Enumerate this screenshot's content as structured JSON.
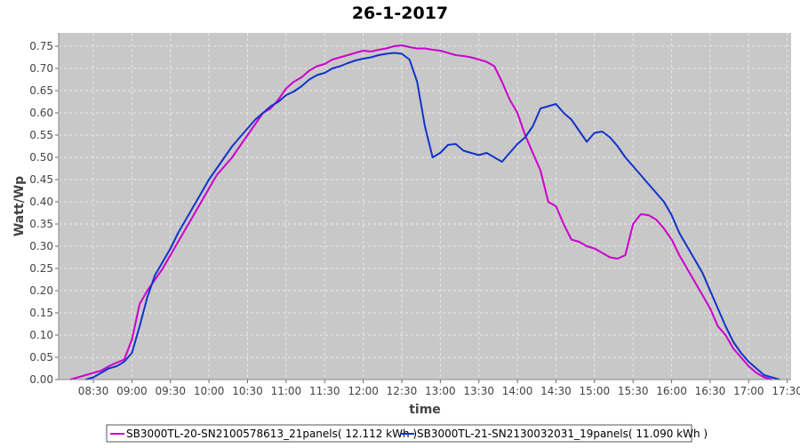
{
  "chart_data": {
    "type": "line",
    "title": "26-1-2017",
    "xlabel": "time",
    "ylabel": "Watt/Wp",
    "x_ticks": [
      "08:30",
      "09:00",
      "09:30",
      "10:00",
      "10:30",
      "11:00",
      "11:30",
      "12:00",
      "12:30",
      "13:00",
      "13:30",
      "14:00",
      "14:30",
      "15:00",
      "15:30",
      "16:00",
      "16:30",
      "17:00",
      "17:30"
    ],
    "y_ticks": [
      "0.00",
      "0.05",
      "0.10",
      "0.15",
      "0.20",
      "0.25",
      "0.30",
      "0.35",
      "0.40",
      "0.45",
      "0.50",
      "0.55",
      "0.60",
      "0.65",
      "0.70",
      "0.75"
    ],
    "xlim": [
      "08:03",
      "17:33"
    ],
    "ylim": [
      0,
      0.78
    ],
    "grid": true,
    "legend_position": "bottom",
    "colors": {
      "plot_background": "#c8c8c8",
      "grid": "#e8e8e8"
    },
    "series": [
      {
        "name": "SB3000TL-20-SN2100578613_21panels( 12.112 kWh )",
        "color": "#cc00cc",
        "points": [
          [
            "08:12",
            0.0
          ],
          [
            "08:18",
            0.005
          ],
          [
            "08:24",
            0.01
          ],
          [
            "08:30",
            0.015
          ],
          [
            "08:36",
            0.02
          ],
          [
            "08:42",
            0.03
          ],
          [
            "08:48",
            0.038
          ],
          [
            "08:54",
            0.045
          ],
          [
            "09:00",
            0.09
          ],
          [
            "09:06",
            0.17
          ],
          [
            "09:12",
            0.2
          ],
          [
            "09:18",
            0.225
          ],
          [
            "09:24",
            0.25
          ],
          [
            "09:30",
            0.28
          ],
          [
            "09:36",
            0.31
          ],
          [
            "09:42",
            0.34
          ],
          [
            "09:48",
            0.37
          ],
          [
            "09:54",
            0.4
          ],
          [
            "10:00",
            0.43
          ],
          [
            "10:06",
            0.46
          ],
          [
            "10:12",
            0.48
          ],
          [
            "10:18",
            0.5
          ],
          [
            "10:24",
            0.525
          ],
          [
            "10:30",
            0.55
          ],
          [
            "10:36",
            0.575
          ],
          [
            "10:42",
            0.6
          ],
          [
            "10:48",
            0.61
          ],
          [
            "10:54",
            0.63
          ],
          [
            "11:00",
            0.655
          ],
          [
            "11:06",
            0.67
          ],
          [
            "11:12",
            0.68
          ],
          [
            "11:18",
            0.695
          ],
          [
            "11:24",
            0.705
          ],
          [
            "11:30",
            0.71
          ],
          [
            "11:36",
            0.72
          ],
          [
            "11:42",
            0.725
          ],
          [
            "11:48",
            0.73
          ],
          [
            "11:54",
            0.735
          ],
          [
            "12:00",
            0.74
          ],
          [
            "12:06",
            0.738
          ],
          [
            "12:12",
            0.742
          ],
          [
            "12:18",
            0.745
          ],
          [
            "12:24",
            0.75
          ],
          [
            "12:30",
            0.752
          ],
          [
            "12:36",
            0.748
          ],
          [
            "12:42",
            0.745
          ],
          [
            "12:48",
            0.745
          ],
          [
            "12:54",
            0.742
          ],
          [
            "13:00",
            0.74
          ],
          [
            "13:06",
            0.735
          ],
          [
            "13:12",
            0.73
          ],
          [
            "13:18",
            0.728
          ],
          [
            "13:24",
            0.725
          ],
          [
            "13:30",
            0.72
          ],
          [
            "13:36",
            0.715
          ],
          [
            "13:42",
            0.705
          ],
          [
            "13:48",
            0.67
          ],
          [
            "13:54",
            0.63
          ],
          [
            "14:00",
            0.6
          ],
          [
            "14:06",
            0.55
          ],
          [
            "14:12",
            0.51
          ],
          [
            "14:18",
            0.47
          ],
          [
            "14:24",
            0.4
          ],
          [
            "14:30",
            0.39
          ],
          [
            "14:36",
            0.35
          ],
          [
            "14:42",
            0.315
          ],
          [
            "14:48",
            0.31
          ],
          [
            "14:54",
            0.3
          ],
          [
            "15:00",
            0.295
          ],
          [
            "15:06",
            0.285
          ],
          [
            "15:12",
            0.275
          ],
          [
            "15:18",
            0.272
          ],
          [
            "15:24",
            0.28
          ],
          [
            "15:30",
            0.35
          ],
          [
            "15:36",
            0.372
          ],
          [
            "15:42",
            0.37
          ],
          [
            "15:48",
            0.36
          ],
          [
            "15:54",
            0.34
          ],
          [
            "16:00",
            0.315
          ],
          [
            "16:06",
            0.28
          ],
          [
            "16:12",
            0.25
          ],
          [
            "16:18",
            0.22
          ],
          [
            "16:24",
            0.19
          ],
          [
            "16:30",
            0.16
          ],
          [
            "16:36",
            0.12
          ],
          [
            "16:42",
            0.1
          ],
          [
            "16:48",
            0.07
          ],
          [
            "16:54",
            0.05
          ],
          [
            "17:00",
            0.03
          ],
          [
            "17:06",
            0.015
          ],
          [
            "17:12",
            0.005
          ],
          [
            "17:18",
            0.0
          ]
        ]
      },
      {
        "name": "SB3000TL-21-SN2130032031_19panels( 11.090 kWh )",
        "color": "#1133cc",
        "points": [
          [
            "08:24",
            0.0
          ],
          [
            "08:30",
            0.005
          ],
          [
            "08:36",
            0.015
          ],
          [
            "08:42",
            0.025
          ],
          [
            "08:48",
            0.03
          ],
          [
            "08:54",
            0.04
          ],
          [
            "09:00",
            0.06
          ],
          [
            "09:06",
            0.12
          ],
          [
            "09:12",
            0.185
          ],
          [
            "09:18",
            0.235
          ],
          [
            "09:24",
            0.265
          ],
          [
            "09:30",
            0.295
          ],
          [
            "09:36",
            0.33
          ],
          [
            "09:42",
            0.36
          ],
          [
            "09:48",
            0.39
          ],
          [
            "09:54",
            0.42
          ],
          [
            "10:00",
            0.45
          ],
          [
            "10:06",
            0.475
          ],
          [
            "10:12",
            0.5
          ],
          [
            "10:18",
            0.525
          ],
          [
            "10:24",
            0.545
          ],
          [
            "10:30",
            0.565
          ],
          [
            "10:36",
            0.585
          ],
          [
            "10:42",
            0.6
          ],
          [
            "10:48",
            0.615
          ],
          [
            "10:54",
            0.625
          ],
          [
            "11:00",
            0.64
          ],
          [
            "11:06",
            0.648
          ],
          [
            "11:12",
            0.66
          ],
          [
            "11:18",
            0.675
          ],
          [
            "11:24",
            0.685
          ],
          [
            "11:30",
            0.69
          ],
          [
            "11:36",
            0.7
          ],
          [
            "11:42",
            0.705
          ],
          [
            "11:48",
            0.712
          ],
          [
            "11:54",
            0.718
          ],
          [
            "12:00",
            0.722
          ],
          [
            "12:06",
            0.725
          ],
          [
            "12:12",
            0.73
          ],
          [
            "12:18",
            0.733
          ],
          [
            "12:24",
            0.735
          ],
          [
            "12:30",
            0.733
          ],
          [
            "12:36",
            0.72
          ],
          [
            "12:42",
            0.67
          ],
          [
            "12:48",
            0.57
          ],
          [
            "12:54",
            0.5
          ],
          [
            "13:00",
            0.51
          ],
          [
            "13:06",
            0.528
          ],
          [
            "13:12",
            0.53
          ],
          [
            "13:18",
            0.515
          ],
          [
            "13:24",
            0.51
          ],
          [
            "13:30",
            0.505
          ],
          [
            "13:36",
            0.51
          ],
          [
            "13:42",
            0.5
          ],
          [
            "13:48",
            0.49
          ],
          [
            "13:54",
            0.51
          ],
          [
            "14:00",
            0.53
          ],
          [
            "14:06",
            0.545
          ],
          [
            "14:12",
            0.57
          ],
          [
            "14:18",
            0.61
          ],
          [
            "14:24",
            0.615
          ],
          [
            "14:30",
            0.62
          ],
          [
            "14:36",
            0.6
          ],
          [
            "14:42",
            0.585
          ],
          [
            "14:48",
            0.56
          ],
          [
            "14:54",
            0.535
          ],
          [
            "15:00",
            0.555
          ],
          [
            "15:06",
            0.558
          ],
          [
            "15:12",
            0.545
          ],
          [
            "15:18",
            0.525
          ],
          [
            "15:24",
            0.5
          ],
          [
            "15:30",
            0.48
          ],
          [
            "15:36",
            0.46
          ],
          [
            "15:42",
            0.44
          ],
          [
            "15:48",
            0.42
          ],
          [
            "15:54",
            0.4
          ],
          [
            "16:00",
            0.37
          ],
          [
            "16:06",
            0.33
          ],
          [
            "16:12",
            0.3
          ],
          [
            "16:18",
            0.27
          ],
          [
            "16:24",
            0.24
          ],
          [
            "16:30",
            0.2
          ],
          [
            "16:36",
            0.16
          ],
          [
            "16:42",
            0.12
          ],
          [
            "16:48",
            0.085
          ],
          [
            "16:54",
            0.06
          ],
          [
            "17:00",
            0.04
          ],
          [
            "17:06",
            0.025
          ],
          [
            "17:12",
            0.01
          ],
          [
            "17:18",
            0.005
          ],
          [
            "17:24",
            0.0
          ]
        ]
      }
    ]
  }
}
